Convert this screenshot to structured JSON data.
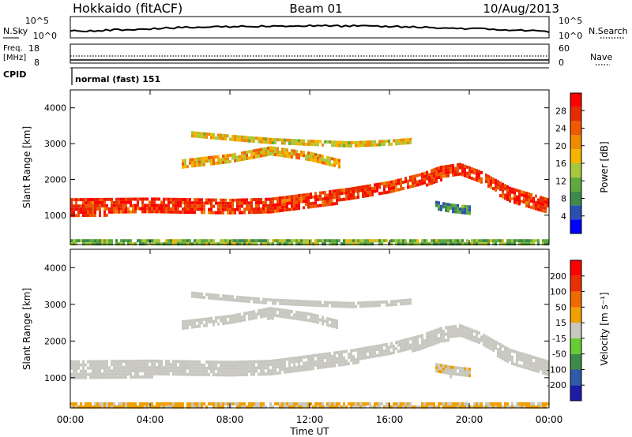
{
  "header": {
    "station": "Hokkaido (fitACF)",
    "beam": "Beam 01",
    "date": "10/Aug/2013"
  },
  "top_panels": {
    "nsky": {
      "label": "N.Sky",
      "left_ticks": [
        "10^5",
        "10^0"
      ],
      "right_ticks": [
        "10^5",
        "10^0"
      ],
      "right_label": "N.Search"
    },
    "freq": {
      "label_line1": "Freq.",
      "label_line2": "[MHz]",
      "left_ticks": [
        "18",
        "8"
      ],
      "right_ticks": [
        "60",
        "0"
      ],
      "right_label": "Nave"
    },
    "cpid": {
      "label": "CPID",
      "text": "normal (fast) 151"
    }
  },
  "power_colorbar": {
    "title": "Power [dB]",
    "tick_labels": [
      "28",
      "24",
      "20",
      "16",
      "12",
      "8",
      "4"
    ],
    "colors": [
      "#0000ff",
      "#2a50b4",
      "#3d8a4a",
      "#5faa3a",
      "#a8c83c",
      "#f4b400",
      "#f08a00",
      "#ef5a00",
      "#e82a00",
      "#ff0000"
    ]
  },
  "velocity_colorbar": {
    "title": "Velocity [m s⁻¹]",
    "tick_labels": [
      "200",
      "100",
      "50",
      "15",
      "-15",
      "-50",
      "-100",
      "-200"
    ],
    "colors": [
      "#1c1ca8",
      "#2e5aa8",
      "#3d8a4a",
      "#66cc33",
      "#c8c8c0",
      "#f0a000",
      "#ef6a00",
      "#e83000",
      "#ff0000"
    ]
  },
  "x_axis": {
    "title": "Time UT",
    "tick_labels": [
      "00:00",
      "04:00",
      "08:00",
      "12:00",
      "16:00",
      "20:00",
      "00:00"
    ]
  },
  "chart_data": [
    {
      "type": "heatmap",
      "title": "",
      "xlabel": "Time UT",
      "ylabel": "Slant Range [km]",
      "xlim": [
        0,
        24
      ],
      "ylim": [
        180,
        4500
      ],
      "yticks": [
        1000,
        2000,
        3000,
        4000
      ],
      "value_label": "Power [dB]",
      "value_range": [
        0,
        32
      ],
      "bands": [
        {
          "hours": [
            0,
            4,
            8,
            10,
            12,
            14,
            16,
            17.5,
            18.5,
            19.5,
            20.5,
            22,
            24
          ],
          "center_km": [
            1250,
            1280,
            1250,
            1300,
            1450,
            1600,
            1800,
            2000,
            2200,
            2300,
            2100,
            1600,
            1250
          ],
          "width_km": [
            450,
            430,
            420,
            380,
            360,
            350,
            330,
            350,
            360,
            320,
            300,
            380,
            420
          ],
          "value": 27
        },
        {
          "hours": [
            5.5,
            8,
            10,
            12,
            13.5
          ],
          "center_km": [
            2450,
            2600,
            2800,
            2650,
            2450
          ],
          "width_km": [
            220,
            240,
            260,
            240,
            220
          ],
          "value": 19
        },
        {
          "hours": [
            6,
            8,
            10,
            12,
            14,
            16,
            17
          ],
          "center_km": [
            3300,
            3200,
            3100,
            3050,
            3000,
            3050,
            3100
          ],
          "width_km": [
            100,
            100,
            120,
            120,
            130,
            130,
            120
          ],
          "value": 17
        },
        {
          "hours": [
            18.2,
            19,
            20
          ],
          "center_km": [
            1300,
            1200,
            1150
          ],
          "width_km": [
            220,
            260,
            240
          ],
          "value": 8
        },
        {
          "hours": [
            0,
            24
          ],
          "center_km": [
            260,
            260
          ],
          "width_km": [
            140,
            140
          ],
          "value": 12
        }
      ]
    },
    {
      "type": "heatmap",
      "title": "",
      "xlabel": "Time UT",
      "ylabel": "Slant Range [km]",
      "xlim": [
        0,
        24
      ],
      "ylim": [
        180,
        4500
      ],
      "yticks": [
        1000,
        2000,
        3000,
        4000
      ],
      "value_label": "Velocity [m s⁻¹]",
      "value_range": [
        -200,
        200
      ],
      "bands": [
        {
          "hours": [
            0,
            4,
            8,
            10,
            12,
            14,
            16,
            17.5,
            18.5,
            19.5,
            20.5,
            22,
            24
          ],
          "center_km": [
            1250,
            1280,
            1250,
            1300,
            1450,
            1600,
            1800,
            2000,
            2200,
            2300,
            2100,
            1600,
            1250
          ],
          "width_km": [
            450,
            430,
            420,
            380,
            360,
            350,
            330,
            350,
            360,
            320,
            300,
            380,
            420
          ],
          "value": 0
        },
        {
          "hours": [
            5.5,
            8,
            10,
            12,
            13.5
          ],
          "center_km": [
            2450,
            2600,
            2800,
            2650,
            2450
          ],
          "width_km": [
            220,
            240,
            260,
            240,
            220
          ],
          "value": 0
        },
        {
          "hours": [
            6,
            8,
            10,
            12,
            14,
            16,
            17
          ],
          "center_km": [
            3300,
            3200,
            3100,
            3050,
            3000,
            3050,
            3100
          ],
          "width_km": [
            100,
            100,
            120,
            120,
            130,
            130,
            120
          ],
          "value": 0
        },
        {
          "hours": [
            18.2,
            19,
            20
          ],
          "center_km": [
            1300,
            1200,
            1150
          ],
          "width_km": [
            220,
            260,
            240
          ],
          "value": 10
        },
        {
          "hours": [
            0,
            24
          ],
          "center_km": [
            260,
            260
          ],
          "width_km": [
            140,
            140
          ],
          "value": 30
        }
      ]
    }
  ]
}
